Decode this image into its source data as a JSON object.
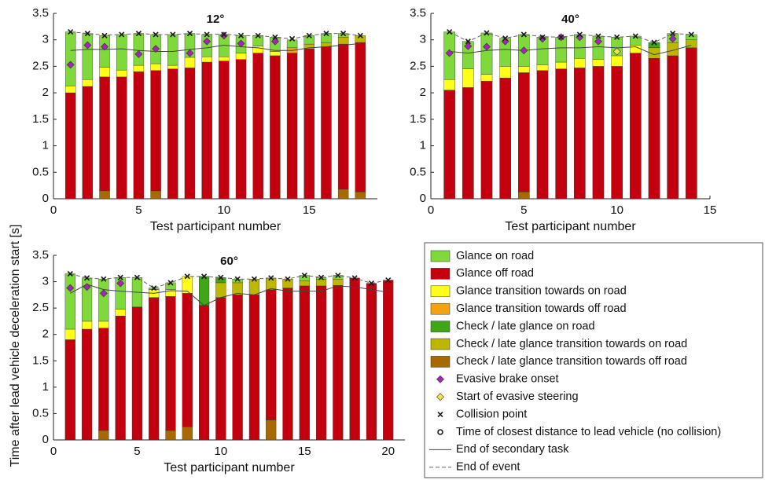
{
  "ylabel": "Time after lead vehicle deceleration start [s]",
  "legend": [
    {
      "name": "Glance on road",
      "color": "#7fd93a",
      "marker": "bar"
    },
    {
      "name": "Glance off road",
      "color": "#c4000f",
      "marker": "bar"
    },
    {
      "name": "Glance transition towards on road",
      "color": "#ffff1a",
      "marker": "bar"
    },
    {
      "name": "Glance transition towards off road",
      "color": "#f2a30f",
      "marker": "bar"
    },
    {
      "name": "Check / late glance on road",
      "color": "#3fa614",
      "marker": "bar"
    },
    {
      "name": "Check / late glance transition towards on road",
      "color": "#bdb700",
      "marker": "bar"
    },
    {
      "name": "Check / late glance transition towards off road",
      "color": "#a86a00",
      "marker": "bar"
    },
    {
      "name": "Evasive brake onset",
      "color": "#a326b5",
      "marker": "diamond"
    },
    {
      "name": "Start of evasive steering",
      "color": "#f3e34a",
      "marker": "diamond"
    },
    {
      "name": "Collision point",
      "color": "#1a1a1a",
      "marker": "x"
    },
    {
      "name": "Time of closest distance to lead vehicle (no collision)",
      "color": "#1a1a1a",
      "marker": "circle"
    },
    {
      "name": "End of secondary task",
      "color": "#444444",
      "marker": "line"
    },
    {
      "name": "End of event",
      "color": "#666666",
      "marker": "dashed"
    }
  ],
  "chart_data": [
    {
      "type": "bar",
      "title": "12°",
      "xlabel": "Test participant number",
      "x": [
        1,
        2,
        3,
        4,
        5,
        6,
        7,
        8,
        9,
        10,
        11,
        12,
        13,
        14,
        15,
        16,
        17,
        18
      ],
      "xlim": [
        0,
        19
      ],
      "xticks": [
        0,
        5,
        10,
        15
      ],
      "ylim": [
        0,
        3.5
      ],
      "yticks": [
        0,
        0.5,
        1,
        1.5,
        2,
        2.5,
        3,
        3.5
      ],
      "series": [
        {
          "values": [
            1.02,
            0.87,
            0.6,
            0.67,
            0.6,
            0.55,
            0.58,
            0.45,
            0.42,
            0.42,
            0.33,
            0.2,
            0.27,
            0.15,
            0.16,
            0.17,
            0.07,
            0
          ]
        },
        {
          "values": [
            2.0,
            2.12,
            2.15,
            2.3,
            2.4,
            2.27,
            2.45,
            2.47,
            2.58,
            2.6,
            2.63,
            2.75,
            2.7,
            2.75,
            2.83,
            2.87,
            2.74,
            2.82
          ]
        },
        {
          "values": [
            0.13,
            0.13,
            0.18,
            0.13,
            0.12,
            0.13,
            0.07,
            0.2,
            0.1,
            0.08,
            0.12,
            0.13,
            0.08,
            0,
            0,
            0,
            0,
            0
          ]
        },
        {
          "values": [
            0,
            0,
            0,
            0,
            0,
            0,
            0,
            0,
            0,
            0,
            0,
            0,
            0,
            0.1,
            0,
            0,
            0,
            0
          ]
        },
        {
          "values": [
            0,
            0,
            0,
            0,
            0,
            0,
            0,
            0,
            0,
            0,
            0,
            0,
            0,
            0,
            0,
            0,
            0,
            0
          ]
        },
        {
          "values": [
            0,
            0,
            0,
            0,
            0,
            0,
            0,
            0,
            0,
            0,
            0,
            0,
            0,
            0,
            0.09,
            0.08,
            0.13,
            0.13
          ]
        },
        {
          "values": [
            0,
            0,
            0.15,
            0,
            0,
            0.15,
            0,
            0,
            0,
            0,
            0,
            0,
            0,
            0,
            0,
            0,
            0.18,
            0.13
          ]
        },
        {
          "values": [
            2.53,
            2.9,
            2.87,
            null,
            2.73,
            2.83,
            null,
            2.75,
            2.97,
            3.08,
            2.93,
            null,
            2.97,
            null,
            null,
            null,
            null,
            null
          ]
        },
        {
          "values": [
            null,
            null,
            null,
            null,
            null,
            null,
            null,
            null,
            null,
            null,
            null,
            null,
            null,
            null,
            null,
            null,
            null,
            null
          ]
        },
        {
          "values": [
            3.15,
            3.12,
            3.08,
            3.1,
            3.12,
            3.1,
            3.1,
            3.12,
            3.1,
            3.1,
            3.08,
            3.08,
            3.05,
            3.02,
            3.08,
            3.12,
            3.12,
            3.08
          ]
        },
        {
          "values": [
            null,
            null,
            null,
            null,
            null,
            null,
            null,
            null,
            null,
            null,
            null,
            null,
            null,
            null,
            null,
            null,
            null,
            null
          ]
        },
        {
          "values": [
            2.8,
            2.82,
            2.82,
            2.83,
            2.8,
            2.78,
            2.78,
            2.82,
            2.85,
            2.9,
            2.87,
            2.85,
            2.8,
            2.8,
            2.85,
            2.87,
            2.9,
            2.93
          ]
        },
        {
          "values": [
            3.15,
            3.12,
            3.09,
            3.1,
            3.12,
            3.1,
            3.1,
            3.12,
            3.1,
            3.11,
            3.08,
            3.08,
            3.05,
            3.02,
            3.08,
            3.12,
            3.12,
            3.08
          ]
        }
      ]
    },
    {
      "type": "bar",
      "title": "40°",
      "xlabel": "Test participant number",
      "x": [
        1,
        2,
        3,
        4,
        5,
        6,
        7,
        8,
        9,
        10,
        11,
        12,
        13,
        14
      ],
      "xlim": [
        0,
        15
      ],
      "xticks": [
        0,
        5,
        10,
        15
      ],
      "ylim": [
        0,
        3.5
      ],
      "yticks": [
        0,
        0.5,
        1,
        1.5,
        2,
        2.5,
        3,
        3.5
      ],
      "series": [
        {
          "values": [
            0.9,
            0.52,
            0.78,
            0.53,
            0.6,
            0.52,
            0.47,
            0.45,
            0.44,
            0.35,
            0.17,
            0,
            0.17,
            0.1
          ]
        },
        {
          "values": [
            2.05,
            2.1,
            2.22,
            2.28,
            2.25,
            2.42,
            2.45,
            2.47,
            2.5,
            2.5,
            2.75,
            2.65,
            2.7,
            2.85
          ]
        },
        {
          "values": [
            0.2,
            0.35,
            0.13,
            0.22,
            0.12,
            0.11,
            0.13,
            0.18,
            0.13,
            0.2,
            0.15,
            0,
            0,
            0
          ]
        },
        {
          "values": [
            0,
            0,
            0,
            0,
            0,
            0,
            0,
            0,
            0,
            0,
            0,
            0,
            0,
            0
          ]
        },
        {
          "values": [
            0,
            0,
            0,
            0,
            0,
            0,
            0,
            0,
            0,
            0,
            0,
            0.1,
            0,
            0
          ]
        },
        {
          "values": [
            0,
            0,
            0,
            0,
            0,
            0,
            0,
            0,
            0,
            0,
            0,
            0.2,
            0.25,
            0.15
          ]
        },
        {
          "values": [
            0,
            0,
            0,
            0,
            0.13,
            0,
            0,
            0,
            0,
            0,
            0,
            0,
            0,
            0
          ]
        },
        {
          "values": [
            2.75,
            2.88,
            2.87,
            2.97,
            2.8,
            3.02,
            3.05,
            3.05,
            2.97,
            null,
            null,
            null,
            3.02,
            null
          ]
        },
        {
          "values": [
            null,
            null,
            null,
            null,
            null,
            null,
            null,
            null,
            null,
            2.78,
            null,
            null,
            null,
            null
          ]
        },
        {
          "values": [
            3.15,
            2.97,
            3.13,
            3.03,
            3.1,
            3.05,
            3.05,
            3.1,
            3.07,
            3.05,
            3.07,
            2.95,
            3.12,
            3.1
          ]
        },
        {
          "values": [
            null,
            null,
            null,
            null,
            null,
            null,
            null,
            null,
            null,
            null,
            null,
            null,
            null,
            null
          ]
        },
        {
          "values": [
            2.78,
            2.75,
            2.8,
            2.82,
            2.8,
            2.83,
            2.85,
            2.85,
            2.87,
            2.85,
            2.87,
            2.72,
            2.8,
            2.9
          ]
        },
        {
          "values": [
            3.15,
            2.97,
            3.13,
            3.03,
            3.1,
            3.06,
            3.05,
            3.1,
            3.07,
            3.05,
            3.07,
            2.95,
            3.12,
            3.1
          ]
        }
      ]
    },
    {
      "type": "bar",
      "title": "60°",
      "xlabel": "Test participant number",
      "x": [
        1,
        2,
        3,
        4,
        5,
        6,
        7,
        8,
        9,
        10,
        11,
        12,
        13,
        14,
        15,
        16,
        17,
        18,
        19,
        20
      ],
      "xlim": [
        0,
        21
      ],
      "xticks": [
        0,
        5,
        10,
        15,
        20
      ],
      "ylim": [
        0,
        3.5
      ],
      "yticks": [
        0,
        0.5,
        1,
        1.5,
        2,
        2.5,
        3,
        3.5
      ],
      "series": [
        {
          "values": [
            1.05,
            0.82,
            0.8,
            0.6,
            0.56,
            0.03,
            0.13,
            0,
            0,
            0,
            0.07,
            0,
            0,
            0,
            0.1,
            0.03,
            0.07,
            0,
            0,
            0
          ]
        },
        {
          "values": [
            1.9,
            2.1,
            1.94,
            2.35,
            2.52,
            2.7,
            2.54,
            2.53,
            2.55,
            2.7,
            2.75,
            2.75,
            2.47,
            2.88,
            2.92,
            2.92,
            2.93,
            3.07,
            2.97,
            3.03
          ]
        },
        {
          "values": [
            0.2,
            0.15,
            0.13,
            0.13,
            0,
            0.15,
            0.13,
            0.32,
            0,
            0,
            0,
            0,
            0,
            0,
            0,
            0,
            0,
            0,
            0,
            0
          ]
        },
        {
          "values": [
            0,
            0,
            0,
            0,
            0,
            0,
            0,
            0,
            0,
            0,
            0,
            0,
            0,
            0,
            0,
            0,
            0,
            0,
            0,
            0
          ]
        },
        {
          "values": [
            0,
            0,
            0,
            0,
            0,
            0,
            0,
            0,
            0.55,
            0.1,
            0,
            0,
            0,
            0,
            0,
            0,
            0,
            0,
            0,
            0
          ]
        },
        {
          "values": [
            0,
            0,
            0,
            0,
            0,
            0,
            0,
            0,
            0,
            0.28,
            0.23,
            0.3,
            0.22,
            0.17,
            0.1,
            0.13,
            0.12,
            0,
            0,
            0
          ]
        },
        {
          "values": [
            0,
            0,
            0.18,
            0,
            0,
            0,
            0.18,
            0.25,
            0,
            0,
            0,
            0,
            0.38,
            0,
            0,
            0,
            0,
            0,
            0,
            0
          ]
        },
        {
          "values": [
            2.88,
            2.9,
            2.78,
            2.97,
            null,
            null,
            null,
            null,
            null,
            null,
            null,
            null,
            null,
            null,
            null,
            null,
            null,
            null,
            null,
            null
          ]
        },
        {
          "values": [
            null,
            null,
            null,
            null,
            null,
            null,
            null,
            null,
            null,
            null,
            null,
            null,
            null,
            null,
            null,
            null,
            null,
            null,
            null,
            null
          ]
        },
        {
          "values": [
            3.15,
            3.07,
            3.05,
            3.08,
            3.08,
            2.88,
            2.98,
            3.1,
            3.1,
            3.08,
            3.05,
            3.05,
            3.07,
            3.05,
            3.12,
            3.08,
            3.12,
            3.07,
            2.97,
            3.03
          ]
        },
        {
          "values": [
            null,
            null,
            null,
            null,
            null,
            null,
            null,
            null,
            null,
            null,
            null,
            null,
            null,
            null,
            null,
            null,
            null,
            null,
            null,
            null
          ]
        },
        {
          "values": [
            2.78,
            2.95,
            2.85,
            2.82,
            2.8,
            2.78,
            2.83,
            2.82,
            2.55,
            2.7,
            2.78,
            2.75,
            2.87,
            2.82,
            2.82,
            2.82,
            2.92,
            2.9,
            2.85,
            2.8
          ]
        },
        {
          "values": [
            3.15,
            3.07,
            3.05,
            3.08,
            3.08,
            2.88,
            2.98,
            3.1,
            3.1,
            3.08,
            3.05,
            3.05,
            3.07,
            3.05,
            3.12,
            3.08,
            3.12,
            3.07,
            2.97,
            3.03
          ]
        }
      ]
    }
  ]
}
